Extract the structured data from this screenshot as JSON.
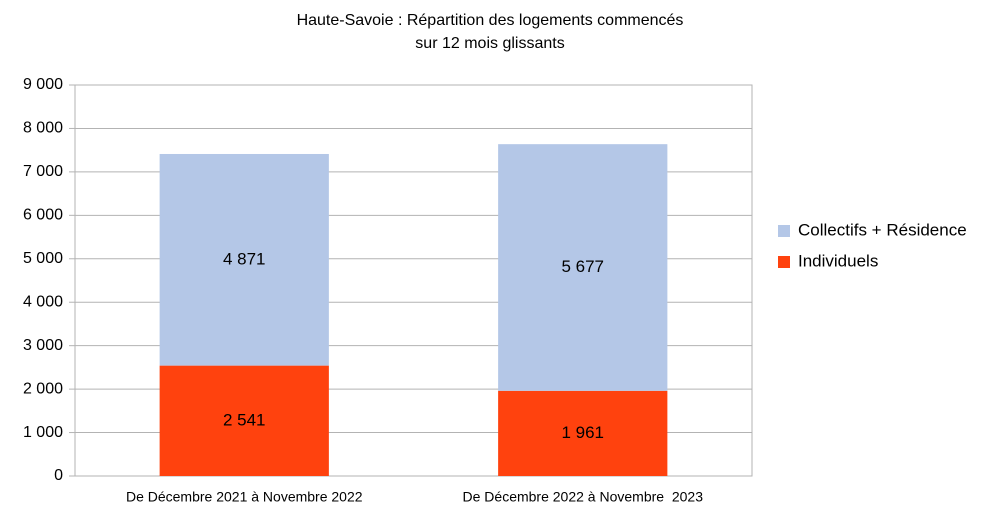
{
  "chart_data": {
    "type": "stacked_bar",
    "title": [
      "Haute-Savoie : Répartition des logements commencés",
      "sur 12 mois glissants"
    ],
    "categories": [
      "De Décembre 2021 à Novembre 2022",
      "De Décembre 2022 à Novembre  2023"
    ],
    "series": [
      {
        "name": "Individuels",
        "color": "#ff420e",
        "values": [
          2541,
          1961
        ],
        "value_labels": [
          "2 541",
          "1 961"
        ]
      },
      {
        "name": "Collectifs + Résidence",
        "color": "#b4c7e7",
        "values": [
          4871,
          5677
        ],
        "value_labels": [
          "4 871",
          "5 677"
        ]
      }
    ],
    "ylim": [
      0,
      9000
    ],
    "yticks": [
      0,
      {
        "value": 1000,
        "label": "1 000"
      },
      {
        "value": 2000,
        "label": "2 000"
      },
      {
        "value": 3000,
        "label": "3 000"
      },
      {
        "value": 4000,
        "label": "4 000"
      },
      {
        "value": 5000,
        "label": "5 000"
      },
      {
        "value": 6000,
        "label": "6 000"
      },
      {
        "value": 7000,
        "label": "7 000"
      },
      {
        "value": 8000,
        "label": "8 000"
      },
      {
        "value": 9000,
        "label": "9 000"
      }
    ],
    "grid": true,
    "legend": "right"
  }
}
